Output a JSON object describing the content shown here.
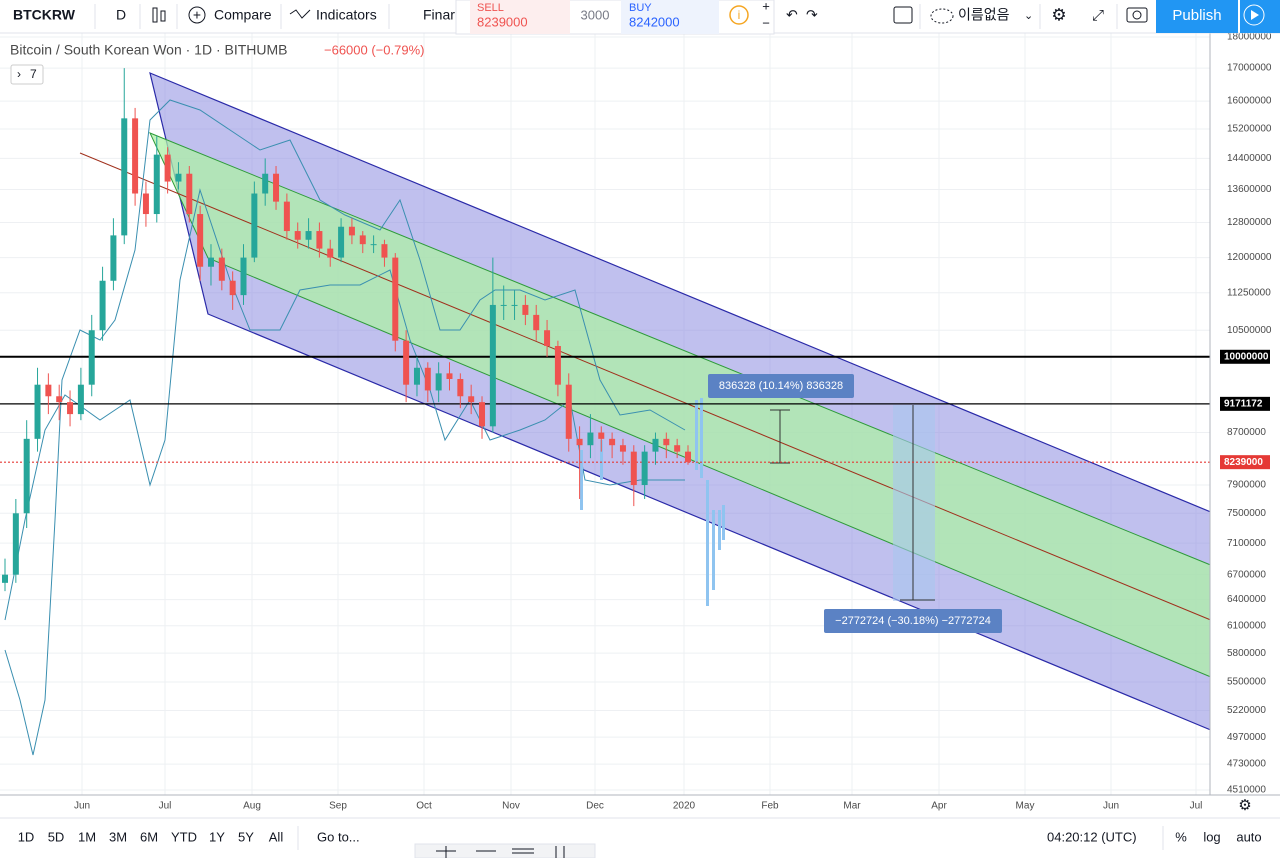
{
  "toolbar": {
    "symbol": "BTCKRW",
    "interval": "D",
    "compare": "Compare",
    "indicators": "Indicators",
    "financials": "Finar",
    "sell_label": "SELL",
    "sell_price": 8239000,
    "spread": 3000,
    "buy_label": "BUY",
    "buy_price": 8242000,
    "layout_name": "이름없음",
    "publish": "Publish"
  },
  "legend": {
    "title": "Bitcoin / South Korean Won · 1D · BITHUMB",
    "change": "−66000 (−0.79%)",
    "indicators_count": "7"
  },
  "chart": {
    "log": true,
    "ylim": [
      4510000,
      18000000
    ],
    "yticks": [
      18000000,
      17000000,
      16000000,
      15200000,
      14400000,
      13600000,
      12800000,
      12000000,
      11250000,
      10500000,
      8700000,
      7900000,
      7500000,
      7100000,
      6700000,
      6400000,
      6100000,
      5800000,
      5500000,
      5220000,
      4970000,
      4730000,
      4510000
    ],
    "months": [
      "Jun",
      "Jul",
      "Aug",
      "Sep",
      "Oct",
      "Nov",
      "Dec",
      "2020",
      "Feb",
      "Mar",
      "Apr",
      "May",
      "Jun",
      "Jul"
    ],
    "up_color": "#26a69a",
    "down_color": "#ef5350",
    "candles": {
      "open": [
        6600000,
        6700000,
        7500000,
        8600000,
        9500000,
        9300000,
        9200000,
        9000000,
        9500000,
        10500000,
        11500000,
        12500000,
        15500000,
        13500000,
        13000000,
        14500000,
        13800000,
        14000000,
        13000000,
        11800000,
        12000000,
        11500000,
        11200000,
        12000000,
        13500000,
        14000000,
        13300000,
        12600000,
        12400000,
        12600000,
        12200000,
        12000000,
        12700000,
        12500000,
        12300000,
        12300000,
        12000000,
        10300000,
        9500000,
        9800000,
        9400000,
        9700000,
        9600000,
        9300000,
        9200000,
        8800000,
        11000000,
        11000000,
        11000000,
        10800000,
        10500000,
        10200000,
        9500000,
        8600000,
        8500000,
        8700000,
        8600000,
        8500000,
        8400000,
        7900000,
        8400000,
        8600000,
        8500000,
        8400000
      ],
      "high": [
        6900000,
        7700000,
        8900000,
        9800000,
        9700000,
        9500000,
        9400000,
        9800000,
        10800000,
        11800000,
        12900000,
        17000000,
        15800000,
        13800000,
        15000000,
        14700000,
        14300000,
        14200000,
        13200000,
        12300000,
        12200000,
        11700000,
        12300000,
        13800000,
        14400000,
        14200000,
        13500000,
        12800000,
        12900000,
        12800000,
        12400000,
        12900000,
        12900000,
        12600000,
        12500000,
        12400000,
        12100000,
        10500000,
        10000000,
        9900000,
        9900000,
        9900000,
        9700000,
        9500000,
        9300000,
        12000000,
        11400000,
        11300000,
        11200000,
        11000000,
        10700000,
        10300000,
        9700000,
        8800000,
        9000000,
        8800000,
        8700000,
        8600000,
        8500000,
        8500000,
        8700000,
        8700000,
        8600000,
        8500000
      ],
      "low": [
        6500000,
        6600000,
        7300000,
        8400000,
        9000000,
        8900000,
        8800000,
        8900000,
        9300000,
        10300000,
        11300000,
        12300000,
        13200000,
        12700000,
        12800000,
        13500000,
        13600000,
        12800000,
        11500000,
        11400000,
        11300000,
        10900000,
        11000000,
        11900000,
        13200000,
        13100000,
        12400000,
        12200000,
        12200000,
        12000000,
        11800000,
        11900000,
        12300000,
        12100000,
        12100000,
        11800000,
        10100000,
        9200000,
        9300000,
        9200000,
        9200000,
        9400000,
        9100000,
        9000000,
        8600000,
        8700000,
        10700000,
        10700000,
        10600000,
        10300000,
        10000000,
        9300000,
        8400000,
        7700000,
        8300000,
        8400000,
        8300000,
        8200000,
        7600000,
        7700000,
        8200000,
        8300000,
        8300000,
        8200000
      ],
      "close": [
        6700000,
        7500000,
        8600000,
        9500000,
        9300000,
        9200000,
        9000000,
        9500000,
        10500000,
        11500000,
        12500000,
        15500000,
        13500000,
        13000000,
        14500000,
        13800000,
        14000000,
        13000000,
        11800000,
        12000000,
        11500000,
        11200000,
        12000000,
        13500000,
        14000000,
        13300000,
        12600000,
        12400000,
        12600000,
        12200000,
        12000000,
        12700000,
        12500000,
        12300000,
        12300000,
        12000000,
        10300000,
        9500000,
        9800000,
        9400000,
        9700000,
        9600000,
        9300000,
        9200000,
        8800000,
        11000000,
        11000000,
        11000000,
        10800000,
        10500000,
        10200000,
        9500000,
        8600000,
        8500000,
        8700000,
        8600000,
        8500000,
        8400000,
        7900000,
        8400000,
        8600000,
        8500000,
        8400000,
        8239000
      ]
    },
    "levels": [
      {
        "value": 10000000,
        "color": "#000000"
      },
      {
        "value": 9171172,
        "color": "#000000"
      },
      {
        "value": 8239000,
        "color": "#e53935"
      }
    ],
    "measurements": [
      {
        "label": "836328 (10.14%) 836328"
      },
      {
        "label": "−2772724 (−30.18%) −2772724"
      }
    ]
  },
  "bottom": {
    "ranges": [
      "1D",
      "5D",
      "1M",
      "3M",
      "6M",
      "YTD",
      "1Y",
      "5Y",
      "All"
    ],
    "goto": "Go to...",
    "clock": "04:20:12 (UTC)",
    "percent": "%",
    "log": "log",
    "auto": "auto"
  }
}
